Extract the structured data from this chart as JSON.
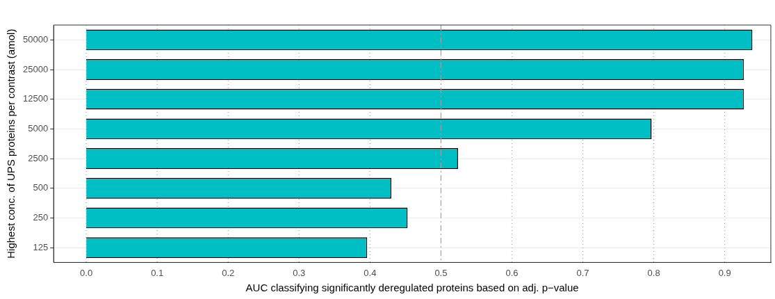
{
  "chart_data": {
    "type": "bar",
    "orientation": "horizontal",
    "xlabel": "AUC classifying significantly deregulated proteins based on adj. p−value",
    "ylabel": "Highest conc. of UPS proteins per contrast (amol)",
    "categories": [
      "50000",
      "25000",
      "12500",
      "5000",
      "2500",
      "500",
      "250",
      "125"
    ],
    "values": [
      0.939,
      0.927,
      0.927,
      0.797,
      0.524,
      0.43,
      0.453,
      0.396
    ],
    "color": "#00bfc4",
    "xlim": [
      -0.046,
      0.965
    ],
    "xticks": [
      {
        "value": 0,
        "label": "0.0"
      },
      0.1,
      0.2,
      0.3,
      0.4,
      0.5,
      0.6,
      0.7,
      0.8,
      0.9
    ],
    "grid": "y",
    "ref_lines": [
      {
        "axis": "x",
        "value": 0,
        "color": "#a0a0a0",
        "line_style": "dotted"
      },
      {
        "axis": "x",
        "value": 0.1,
        "color": "#a0a0a0",
        "line_style": "dotted"
      },
      {
        "axis": "x",
        "value": 0.2,
        "color": "#a0a0a0",
        "line_style": "dotted"
      },
      {
        "axis": "x",
        "value": 0.3,
        "color": "#a0a0a0",
        "line_style": "dotted"
      },
      {
        "axis": "x",
        "value": 0.4,
        "color": "#a0a0a0",
        "line_style": "dotted"
      },
      {
        "axis": "x",
        "value": 0.5,
        "color": "#a0a0a0",
        "line_style": "dashed"
      },
      {
        "axis": "x",
        "value": 0.6,
        "color": "#a0a0a0",
        "line_style": "dotted"
      },
      {
        "axis": "x",
        "value": 0.7,
        "color": "#a0a0a0",
        "line_style": "dotted"
      },
      {
        "axis": "x",
        "value": 0.8,
        "color": "#a0a0a0",
        "line_style": "dotted"
      },
      {
        "axis": "x",
        "value": 0.9,
        "color": "#a0a0a0",
        "line_style": "dotted"
      }
    ]
  }
}
